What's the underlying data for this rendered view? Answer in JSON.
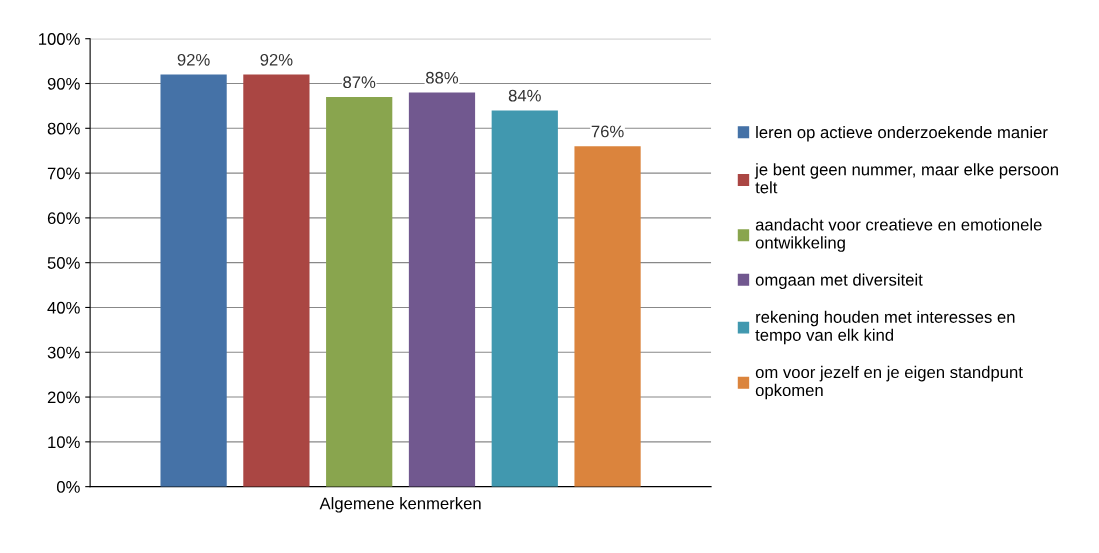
{
  "chart_data": {
    "type": "bar",
    "xlabel": "Algemene kenmerken",
    "categories": [
      null
    ],
    "series": [
      {
        "name": "leren op actieve onderzoekende manier",
        "color": "#4572a7",
        "values": [
          92
        ],
        "value_labels": [
          "92%"
        ]
      },
      {
        "name": "je bent geen nummer, maar elke persoon telt",
        "color": "#aa4643",
        "values": [
          92
        ],
        "value_labels": [
          "92%"
        ]
      },
      {
        "name": "aandacht voor creatieve en emotionele ontwikkeling",
        "color": "#89a54e",
        "values": [
          87
        ],
        "value_labels": [
          "87%"
        ]
      },
      {
        "name": "omgaan met diversiteit",
        "color": "#71588f",
        "values": [
          88
        ],
        "value_labels": [
          "88%"
        ]
      },
      {
        "name": "rekening houden met interesses en tempo van elk kind",
        "color": "#4198af",
        "values": [
          84
        ],
        "value_labels": [
          "84%"
        ]
      },
      {
        "name": "om voor jezelf en je eigen standpunt opkomen",
        "color": "#db843d",
        "values": [
          76
        ],
        "value_labels": [
          "76%"
        ]
      }
    ],
    "ylim": [
      0,
      100
    ],
    "yticks": [
      {
        "value": 0,
        "label": "0%"
      },
      {
        "value": 10,
        "label": "10%"
      },
      {
        "value": 20,
        "label": "20%"
      },
      {
        "value": 30,
        "label": "30%"
      },
      {
        "value": 40,
        "label": "40%"
      },
      {
        "value": 50,
        "label": "50%"
      },
      {
        "value": 60,
        "label": "60%"
      },
      {
        "value": 70,
        "label": "70%"
      },
      {
        "value": 80,
        "label": "80%"
      },
      {
        "value": 90,
        "label": "90%"
      },
      {
        "value": 100,
        "label": "100%"
      }
    ],
    "grid": "y",
    "legend": "right"
  }
}
